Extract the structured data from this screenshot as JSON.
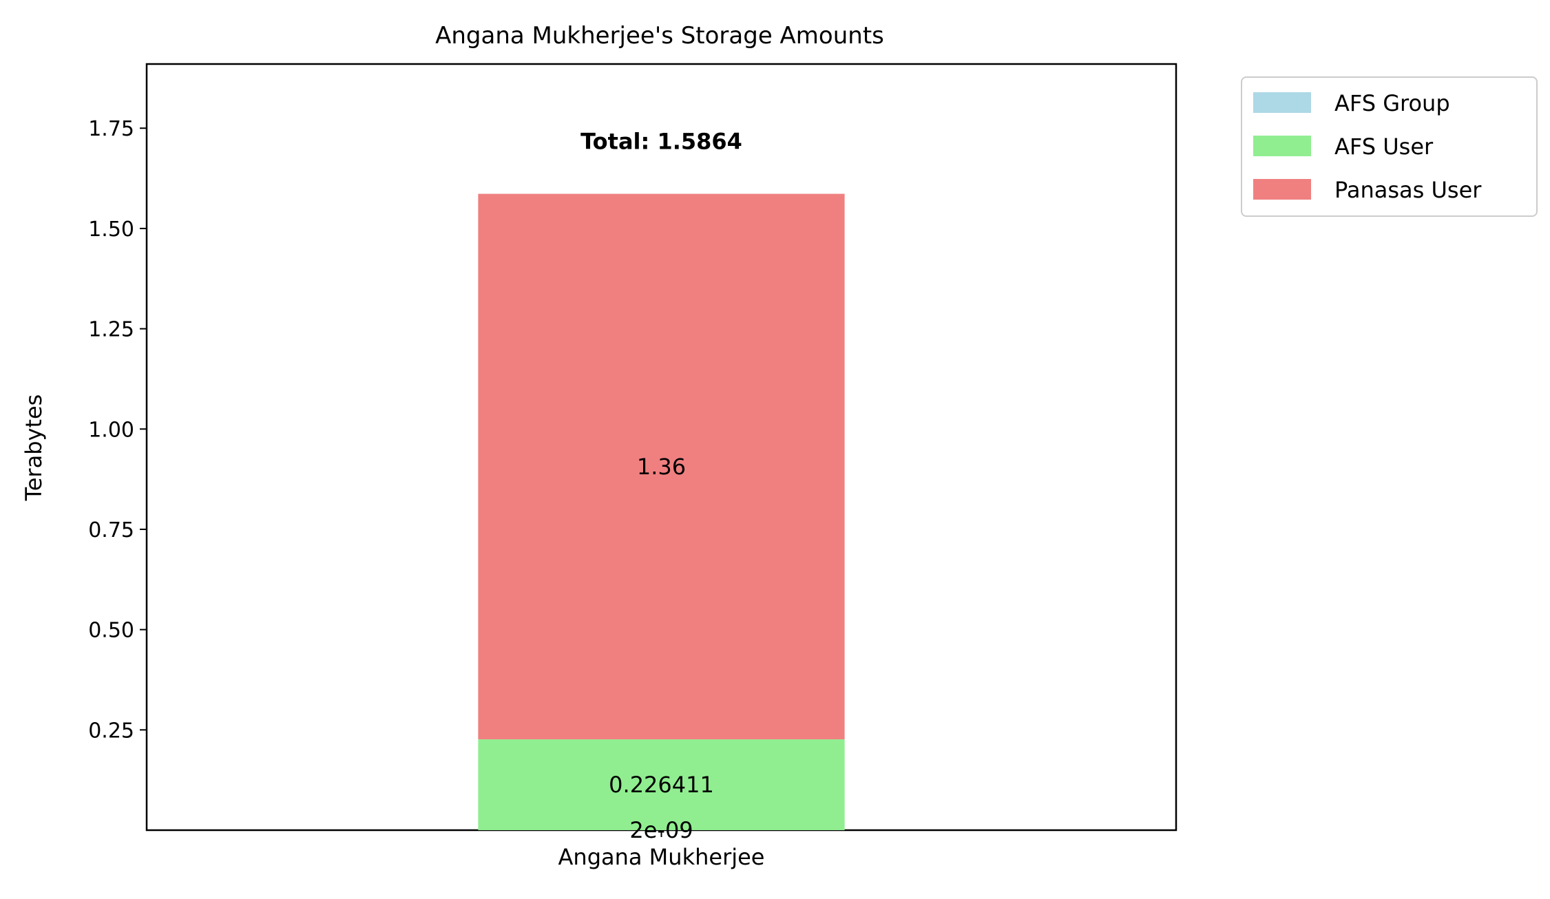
{
  "chart_data": {
    "type": "bar",
    "stacked": true,
    "title": "Angana Mukherjee's Storage Amounts",
    "xlabel": "",
    "ylabel": "Terabytes",
    "categories": [
      "Angana Mukherjee"
    ],
    "ylim": [
      0,
      1.91
    ],
    "yticks": [
      0.25,
      0.5,
      0.75,
      1.0,
      1.25,
      1.5,
      1.75
    ],
    "ytick_labels": [
      "0.25",
      "0.50",
      "0.75",
      "1.00",
      "1.25",
      "1.50",
      "1.75"
    ],
    "series": [
      {
        "name": "AFS Group",
        "values": [
          2e-09
        ],
        "color": "#add8e6",
        "label": "2e-09"
      },
      {
        "name": "AFS User",
        "values": [
          0.226411
        ],
        "color": "#90ee90",
        "label": "0.226411"
      },
      {
        "name": "Panasas User",
        "values": [
          1.36
        ],
        "color": "#f08080",
        "label": "1.36"
      }
    ],
    "total_labels": [
      "Total: 1.5864"
    ],
    "legend_position": "upper right, outside plot",
    "grid": false
  }
}
